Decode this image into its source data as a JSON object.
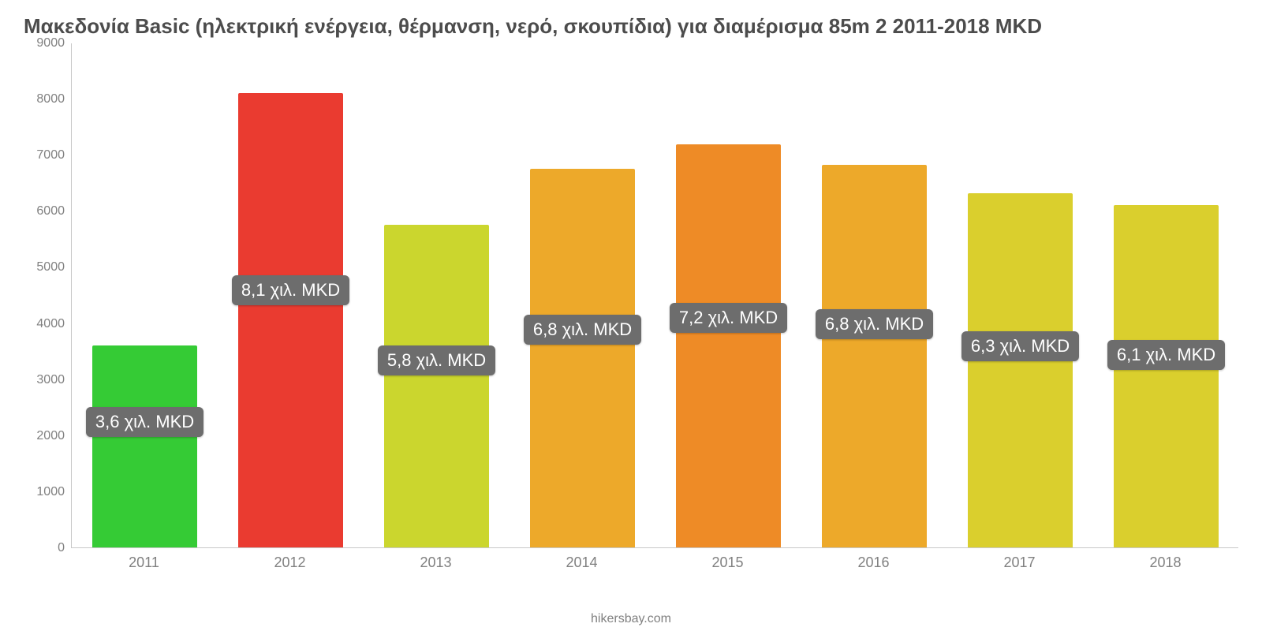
{
  "title": "Μακεδονία Basic (ηλεκτρική ενέργεια, θέρμανση, νερό, σκουπίδια) για διαμέρισμα 85m 2 2011-2018 MKD",
  "credit": "hikersbay.com",
  "chart": {
    "type": "bar",
    "background_color": "#ffffff",
    "axis_color": "#c8c8c8",
    "label_color": "#808080",
    "title_color": "#4c4c4c",
    "title_fontsize": 26,
    "axis_label_fontsize": 16,
    "x_label_fontsize": 18,
    "pill_bg": "#6d6d6d",
    "pill_color": "#ffffff",
    "pill_fontsize": 22,
    "ylim": [
      0,
      9000
    ],
    "ytick_step": 1000,
    "yticks": [
      0,
      1000,
      2000,
      3000,
      4000,
      5000,
      6000,
      7000,
      8000,
      9000
    ],
    "bar_width": 0.72,
    "categories": [
      "2011",
      "2012",
      "2013",
      "2014",
      "2015",
      "2016",
      "2017",
      "2018"
    ],
    "values": [
      3600,
      8100,
      5750,
      6750,
      7180,
      6820,
      6320,
      6100
    ],
    "value_labels": [
      "3,6 χιλ. MKD",
      "8,1 χιλ. MKD",
      "5,8 χιλ. MKD",
      "6,8 χιλ. MKD",
      "7,2 χιλ. MKD",
      "6,8 χιλ. MKD",
      "6,3 χιλ. MKD",
      "6,1 χιλ. MKD"
    ],
    "bar_colors": [
      "#35cb35",
      "#ea3b30",
      "#cbd62e",
      "#eda92a",
      "#ee8b26",
      "#eda92a",
      "#dacf2d",
      "#dacf2d"
    ],
    "pill_y_values": [
      2250,
      4600,
      3350,
      3900,
      4100,
      4000,
      3600,
      3450
    ]
  }
}
